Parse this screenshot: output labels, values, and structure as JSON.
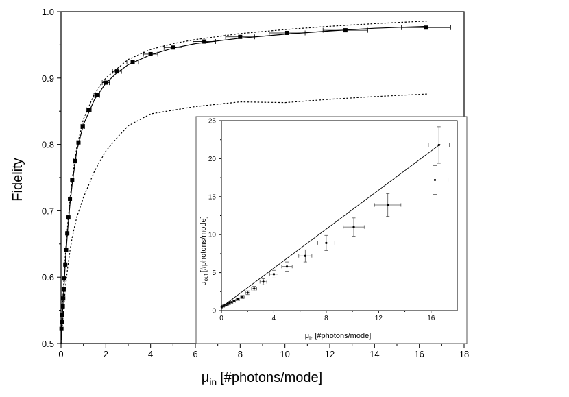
{
  "chart_data": [
    {
      "type": "scatter",
      "title": "",
      "xlabel": {
        "symbol": "μ",
        "sub": "in",
        "unit": "[#photons/mode]"
      },
      "ylabel": "Fidelity",
      "xlim": [
        0,
        18
      ],
      "ylim": [
        0.5,
        1.0
      ],
      "xticks": [
        "0",
        "2",
        "4",
        "6",
        "8",
        "10",
        "12",
        "14",
        "16",
        "18"
      ],
      "yticks": [
        "0.5",
        "0.6",
        "0.7",
        "0.8",
        "0.9",
        "1.0"
      ],
      "series": [
        {
          "style": "markers-with-x-errorbars",
          "points": [
            [
              0.02,
              0.522
            ],
            [
              0.04,
              0.532
            ],
            [
              0.06,
              0.543
            ],
            [
              0.08,
              0.556
            ],
            [
              0.1,
              0.568
            ],
            [
              0.12,
              0.582
            ],
            [
              0.15,
              0.598
            ],
            [
              0.19,
              0.619
            ],
            [
              0.23,
              0.641
            ],
            [
              0.28,
              0.666
            ],
            [
              0.33,
              0.69
            ],
            [
              0.4,
              0.718
            ],
            [
              0.5,
              0.746
            ],
            [
              0.62,
              0.775
            ],
            [
              0.78,
              0.803
            ],
            [
              0.97,
              0.827
            ],
            [
              1.25,
              0.852
            ],
            [
              1.6,
              0.874
            ],
            [
              2.0,
              0.893
            ],
            [
              2.5,
              0.91
            ],
            [
              3.2,
              0.924
            ],
            [
              4.0,
              0.936
            ],
            [
              5.0,
              0.946
            ],
            [
              6.4,
              0.955
            ],
            [
              8.0,
              0.962
            ],
            [
              10.1,
              0.968
            ],
            [
              12.7,
              0.972
            ],
            [
              16.3,
              0.976
            ]
          ],
          "x_err": [
            0.004,
            0.005,
            0.006,
            0.007,
            0.008,
            0.01,
            0.012,
            0.015,
            0.018,
            0.022,
            0.026,
            0.032,
            0.04,
            0.05,
            0.06,
            0.08,
            0.1,
            0.13,
            0.16,
            0.2,
            0.26,
            0.32,
            0.4,
            0.5,
            0.65,
            0.8,
            1.0,
            1.1
          ]
        },
        {
          "style": "solid",
          "points": [
            [
              0.0,
              0.5
            ],
            [
              0.05,
              0.535
            ],
            [
              0.1,
              0.567
            ],
            [
              0.2,
              0.625
            ],
            [
              0.3,
              0.672
            ],
            [
              0.4,
              0.71
            ],
            [
              0.5,
              0.74
            ],
            [
              0.7,
              0.79
            ],
            [
              1.0,
              0.83
            ],
            [
              1.5,
              0.868
            ],
            [
              2.0,
              0.892
            ],
            [
              2.5,
              0.908
            ],
            [
              3.0,
              0.92
            ],
            [
              4.0,
              0.935
            ],
            [
              5.0,
              0.945
            ],
            [
              6.0,
              0.952
            ],
            [
              8.0,
              0.96
            ],
            [
              10.0,
              0.966
            ],
            [
              12.0,
              0.971
            ],
            [
              14.0,
              0.975
            ],
            [
              16.4,
              0.978
            ]
          ]
        },
        {
          "style": "dotted",
          "points": [
            [
              0.0,
              0.5
            ],
            [
              0.05,
              0.545
            ],
            [
              0.1,
              0.58
            ],
            [
              0.2,
              0.636
            ],
            [
              0.3,
              0.68
            ],
            [
              0.4,
              0.717
            ],
            [
              0.5,
              0.748
            ],
            [
              0.7,
              0.795
            ],
            [
              1.0,
              0.838
            ],
            [
              1.5,
              0.877
            ],
            [
              2.0,
              0.9
            ],
            [
              3.0,
              0.928
            ],
            [
              4.0,
              0.943
            ],
            [
              5.0,
              0.952
            ],
            [
              6.0,
              0.958
            ],
            [
              8.0,
              0.967
            ],
            [
              10.0,
              0.973
            ],
            [
              12.0,
              0.978
            ],
            [
              14.0,
              0.982
            ],
            [
              16.4,
              0.986
            ]
          ]
        },
        {
          "style": "dotted",
          "points": [
            [
              0.0,
              0.5
            ],
            [
              0.1,
              0.545
            ],
            [
              0.2,
              0.585
            ],
            [
              0.3,
              0.615
            ],
            [
              0.4,
              0.64
            ],
            [
              0.5,
              0.66
            ],
            [
              0.7,
              0.69
            ],
            [
              1.0,
              0.72
            ],
            [
              1.5,
              0.76
            ],
            [
              2.0,
              0.79
            ],
            [
              2.5,
              0.81
            ],
            [
              3.0,
              0.828
            ],
            [
              4.0,
              0.846
            ],
            [
              6.0,
              0.857
            ],
            [
              8.0,
              0.864
            ],
            [
              10.0,
              0.863
            ],
            [
              12.0,
              0.868
            ],
            [
              14.0,
              0.872
            ],
            [
              16.4,
              0.876
            ]
          ]
        }
      ]
    },
    {
      "type": "scatter",
      "title": "",
      "xlabel": {
        "symbol": "μ",
        "sub": "in",
        "unit": "[#photons/mode]"
      },
      "ylabel": {
        "symbol": "μ",
        "sub": "out",
        "unit": "[#photons/mode]"
      },
      "xlim": [
        0,
        18
      ],
      "ylim": [
        0,
        25
      ],
      "xticks": [
        "0",
        "4",
        "8",
        "12",
        "16"
      ],
      "yticks": [
        "0",
        "5",
        "10",
        "15",
        "20",
        "25"
      ],
      "series": [
        {
          "style": "markers-with-xy-errorbars",
          "points": [
            [
              0.05,
              0.5
            ],
            [
              0.1,
              0.55
            ],
            [
              0.2,
              0.62
            ],
            [
              0.3,
              0.7
            ],
            [
              0.4,
              0.78
            ],
            [
              0.5,
              0.87
            ],
            [
              0.62,
              0.97
            ],
            [
              0.78,
              1.1
            ],
            [
              0.97,
              1.27
            ],
            [
              1.25,
              1.5
            ],
            [
              1.6,
              1.8
            ],
            [
              2.0,
              2.35
            ],
            [
              2.5,
              2.9
            ],
            [
              3.2,
              3.8
            ],
            [
              4.0,
              4.8
            ],
            [
              5.0,
              5.8
            ],
            [
              6.4,
              7.2
            ],
            [
              8.0,
              8.9
            ],
            [
              10.1,
              11.0
            ],
            [
              12.7,
              13.9
            ],
            [
              16.3,
              17.2
            ],
            [
              16.6,
              21.8
            ]
          ],
          "x_err": [
            0.01,
            0.02,
            0.03,
            0.04,
            0.05,
            0.06,
            0.07,
            0.08,
            0.1,
            0.12,
            0.14,
            0.16,
            0.2,
            0.26,
            0.32,
            0.4,
            0.5,
            0.65,
            0.8,
            1.0,
            1.0,
            0.8
          ],
          "y_err": [
            0.05,
            0.05,
            0.06,
            0.06,
            0.07,
            0.08,
            0.09,
            0.1,
            0.12,
            0.15,
            0.2,
            0.25,
            0.3,
            0.4,
            0.5,
            0.6,
            0.8,
            1.0,
            1.2,
            1.5,
            1.9,
            2.4
          ]
        },
        {
          "style": "solid",
          "points": [
            [
              0.0,
              0.45
            ],
            [
              16.7,
              21.9
            ]
          ]
        }
      ]
    }
  ]
}
